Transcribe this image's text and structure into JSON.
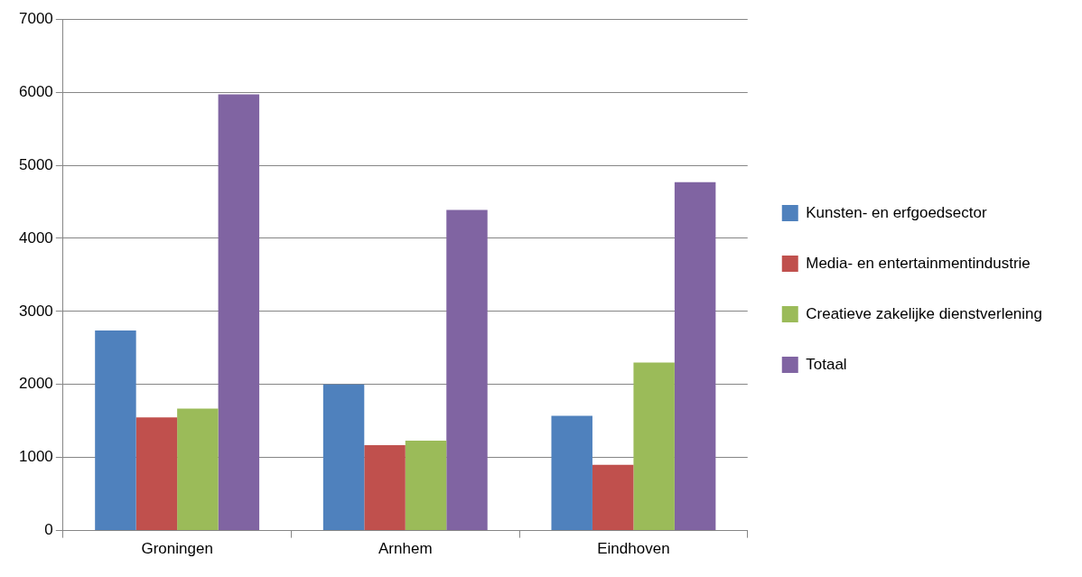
{
  "chart_data": {
    "type": "bar",
    "categories": [
      "Groningen",
      "Arnhem",
      "Eindhoven"
    ],
    "series": [
      {
        "name": "Kunsten- en erfgoedsector",
        "color": "#4f81bd",
        "values": [
          2740,
          2000,
          1570
        ]
      },
      {
        "name": "Media- en entertainmentindustrie",
        "color": "#c0504d",
        "values": [
          1550,
          1170,
          900
        ]
      },
      {
        "name": "Creatieve zakelijke dienstverlening",
        "color": "#9bbb59",
        "values": [
          1670,
          1230,
          2300
        ]
      },
      {
        "name": "Totaal",
        "color": "#8064a2",
        "values": [
          5970,
          4390,
          4770
        ]
      }
    ],
    "ylim": [
      0,
      7000
    ],
    "yticks": [
      0,
      1000,
      2000,
      3000,
      4000,
      5000,
      6000,
      7000
    ],
    "grid": "y",
    "legend": "right"
  }
}
